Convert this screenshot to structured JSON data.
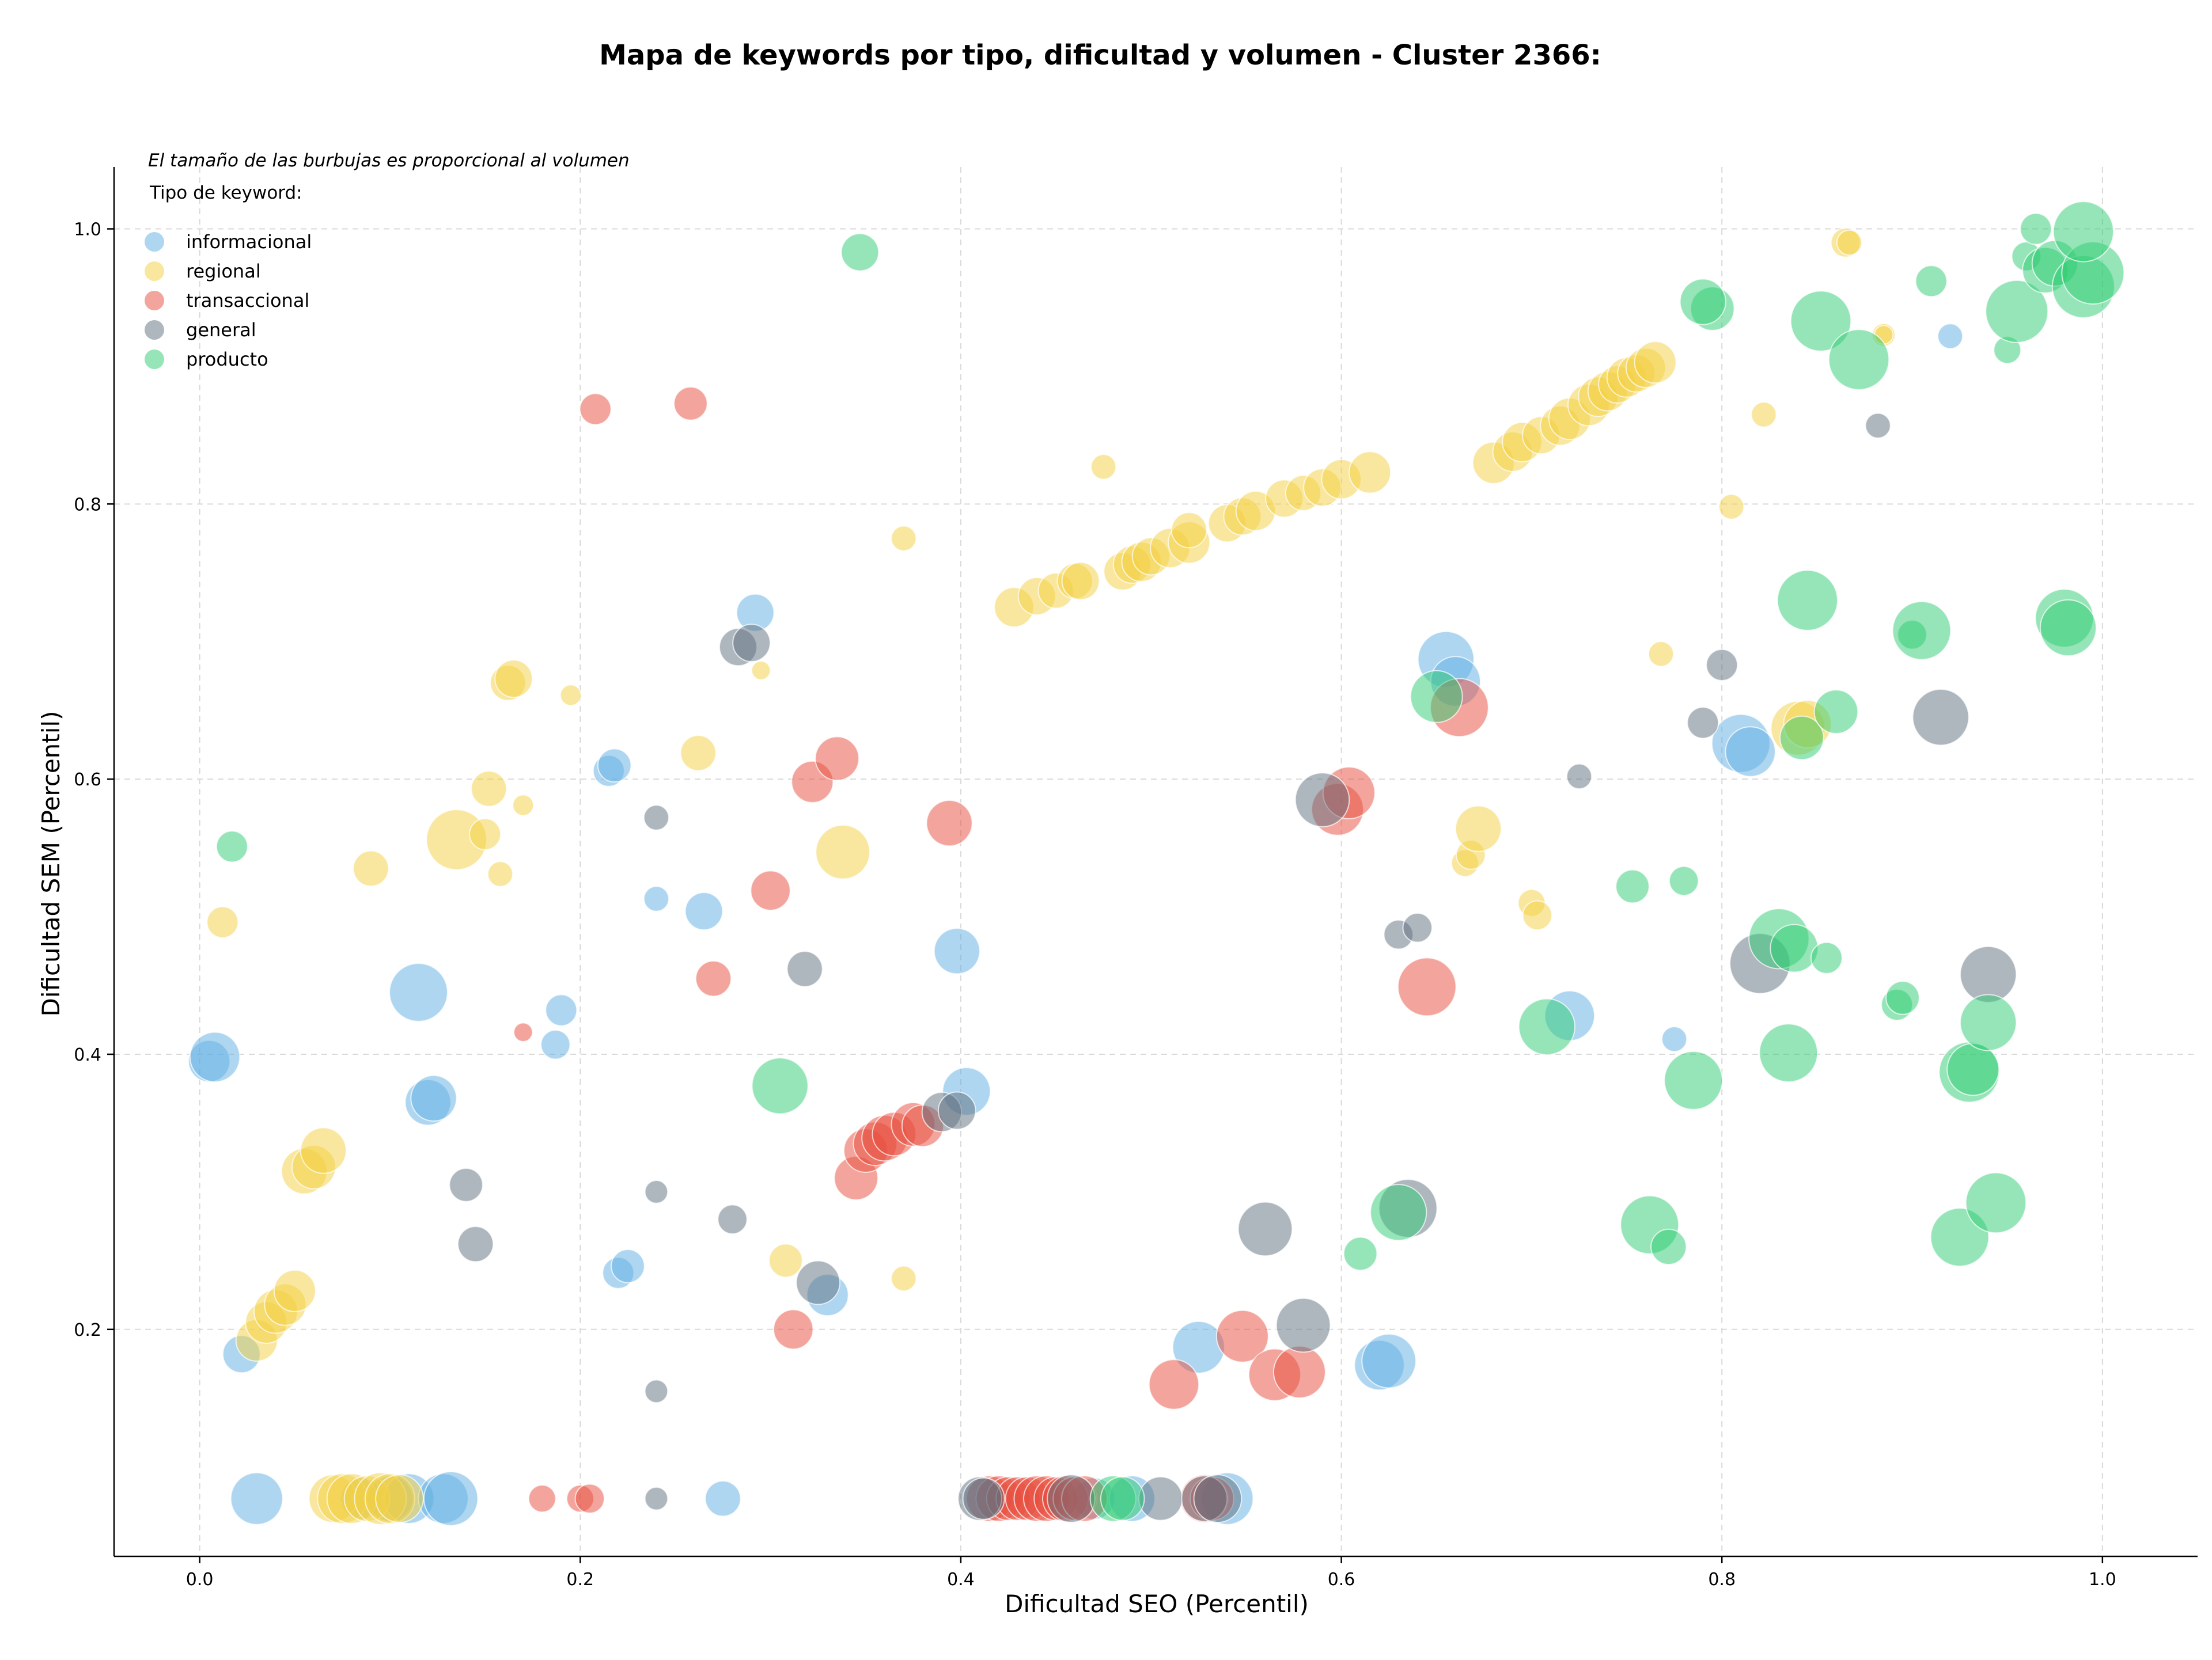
{
  "chart_data": {
    "type": "scatter",
    "title": "Mapa de keywords por tipo, dificultad y volumen - Cluster 2366:",
    "xlabel": "Dificultad SEO (Percentil)",
    "ylabel": "Dificultad SEM (Percentil)",
    "xlim": [
      -0.045,
      1.05
    ],
    "ylim": [
      0.035,
      1.045
    ],
    "x_ticks": [
      "0.0",
      "0.2",
      "0.4",
      "0.6",
      "0.8",
      "1.0"
    ],
    "y_ticks": [
      "0.2",
      "0.4",
      "0.6",
      "0.8",
      "1.0"
    ],
    "grid": true,
    "legend_position": "top-left",
    "annotation": "El tamaño de las burbujas es proporcional al volumen",
    "legend_title": "Tipo de keyword:",
    "series": [
      {
        "name": "informacional",
        "color": "#5dade2",
        "points": [
          [
            0.005,
            0.395,
            20
          ],
          [
            0.008,
            0.398,
            24
          ],
          [
            0.022,
            0.182,
            18
          ],
          [
            0.03,
            0.077,
            25
          ],
          [
            0.085,
            0.077,
            20
          ],
          [
            0.1,
            0.077,
            22
          ],
          [
            0.11,
            0.077,
            24
          ],
          [
            0.128,
            0.077,
            24
          ],
          [
            0.132,
            0.077,
            26
          ],
          [
            0.115,
            0.445,
            28
          ],
          [
            0.12,
            0.365,
            22
          ],
          [
            0.123,
            0.368,
            22
          ],
          [
            0.19,
            0.432,
            15
          ],
          [
            0.187,
            0.407,
            14
          ],
          [
            0.215,
            0.606,
            15
          ],
          [
            0.218,
            0.61,
            16
          ],
          [
            0.22,
            0.241,
            15
          ],
          [
            0.225,
            0.246,
            16
          ],
          [
            0.24,
            0.513,
            12
          ],
          [
            0.265,
            0.504,
            18
          ],
          [
            0.275,
            0.077,
            17
          ],
          [
            0.292,
            0.721,
            18
          ],
          [
            0.33,
            0.225,
            20
          ],
          [
            0.398,
            0.475,
            22
          ],
          [
            0.403,
            0.373,
            23
          ],
          [
            0.47,
            0.077,
            20
          ],
          [
            0.49,
            0.077,
            22
          ],
          [
            0.525,
            0.187,
            25
          ],
          [
            0.54,
            0.077,
            25
          ],
          [
            0.62,
            0.174,
            24
          ],
          [
            0.625,
            0.177,
            26
          ],
          [
            0.655,
            0.687,
            27
          ],
          [
            0.66,
            0.671,
            24
          ],
          [
            0.72,
            0.428,
            24
          ],
          [
            0.775,
            0.411,
            12
          ],
          [
            0.81,
            0.626,
            28
          ],
          [
            0.815,
            0.62,
            24
          ],
          [
            0.92,
            0.922,
            12
          ]
        ]
      },
      {
        "name": "regional",
        "color": "#f4d03f",
        "points": [
          [
            0.012,
            0.496,
            15
          ],
          [
            0.03,
            0.192,
            20
          ],
          [
            0.035,
            0.205,
            20
          ],
          [
            0.04,
            0.213,
            21
          ],
          [
            0.045,
            0.218,
            20
          ],
          [
            0.05,
            0.228,
            20
          ],
          [
            0.055,
            0.315,
            22
          ],
          [
            0.06,
            0.318,
            21
          ],
          [
            0.065,
            0.33,
            22
          ],
          [
            0.07,
            0.077,
            23
          ],
          [
            0.075,
            0.077,
            24
          ],
          [
            0.08,
            0.077,
            24
          ],
          [
            0.088,
            0.077,
            22
          ],
          [
            0.095,
            0.077,
            25
          ],
          [
            0.1,
            0.077,
            24
          ],
          [
            0.105,
            0.077,
            23
          ],
          [
            0.09,
            0.535,
            17
          ],
          [
            0.135,
            0.556,
            29
          ],
          [
            0.15,
            0.56,
            15
          ],
          [
            0.152,
            0.593,
            17
          ],
          [
            0.158,
            0.531,
            12
          ],
          [
            0.162,
            0.67,
            17
          ],
          [
            0.165,
            0.673,
            18
          ],
          [
            0.17,
            0.581,
            10
          ],
          [
            0.195,
            0.661,
            10
          ],
          [
            0.262,
            0.619,
            17
          ],
          [
            0.295,
            0.679,
            9
          ],
          [
            0.308,
            0.25,
            16
          ],
          [
            0.338,
            0.547,
            26
          ],
          [
            0.37,
            0.775,
            12
          ],
          [
            0.37,
            0.237,
            12
          ],
          [
            0.428,
            0.725,
            19
          ],
          [
            0.44,
            0.733,
            18
          ],
          [
            0.45,
            0.737,
            17
          ],
          [
            0.46,
            0.744,
            17
          ],
          [
            0.463,
            0.744,
            18
          ],
          [
            0.475,
            0.827,
            12
          ],
          [
            0.485,
            0.751,
            18
          ],
          [
            0.49,
            0.756,
            18
          ],
          [
            0.495,
            0.758,
            19
          ],
          [
            0.5,
            0.762,
            18
          ],
          [
            0.51,
            0.768,
            19
          ],
          [
            0.52,
            0.772,
            20
          ],
          [
            0.52,
            0.781,
            17
          ],
          [
            0.54,
            0.786,
            18
          ],
          [
            0.548,
            0.791,
            18
          ],
          [
            0.555,
            0.795,
            19
          ],
          [
            0.57,
            0.804,
            18
          ],
          [
            0.58,
            0.808,
            17
          ],
          [
            0.59,
            0.812,
            18
          ],
          [
            0.6,
            0.818,
            19
          ],
          [
            0.615,
            0.823,
            20
          ],
          [
            0.665,
            0.539,
            13
          ],
          [
            0.668,
            0.545,
            14
          ],
          [
            0.672,
            0.564,
            22
          ],
          [
            0.7,
            0.51,
            13
          ],
          [
            0.703,
            0.501,
            14
          ],
          [
            0.68,
            0.83,
            20
          ],
          [
            0.69,
            0.838,
            19
          ],
          [
            0.695,
            0.845,
            19
          ],
          [
            0.705,
            0.85,
            18
          ],
          [
            0.715,
            0.857,
            19
          ],
          [
            0.72,
            0.862,
            20
          ],
          [
            0.73,
            0.872,
            20
          ],
          [
            0.735,
            0.878,
            19
          ],
          [
            0.74,
            0.882,
            19
          ],
          [
            0.745,
            0.887,
            18
          ],
          [
            0.75,
            0.892,
            19
          ],
          [
            0.755,
            0.895,
            18
          ],
          [
            0.76,
            0.899,
            19
          ],
          [
            0.765,
            0.903,
            20
          ],
          [
            0.768,
            0.691,
            12
          ],
          [
            0.805,
            0.798,
            12
          ],
          [
            0.822,
            0.865,
            12
          ],
          [
            0.84,
            0.637,
            26
          ],
          [
            0.845,
            0.64,
            23
          ],
          [
            0.865,
            0.99,
            14
          ],
          [
            0.867,
            0.99,
            12
          ],
          [
            0.885,
            0.923,
            11
          ],
          [
            0.885,
            0.923,
            9
          ]
        ]
      },
      {
        "name": "transaccional",
        "color": "#e74c3c",
        "points": [
          [
            0.17,
            0.416,
            9
          ],
          [
            0.18,
            0.077,
            13
          ],
          [
            0.2,
            0.077,
            13
          ],
          [
            0.205,
            0.077,
            14
          ],
          [
            0.208,
            0.869,
            15
          ],
          [
            0.258,
            0.873,
            16
          ],
          [
            0.27,
            0.455,
            17
          ],
          [
            0.3,
            0.519,
            19
          ],
          [
            0.312,
            0.2,
            19
          ],
          [
            0.322,
            0.598,
            20
          ],
          [
            0.335,
            0.615,
            21
          ],
          [
            0.345,
            0.31,
            21
          ],
          [
            0.35,
            0.33,
            21
          ],
          [
            0.355,
            0.335,
            21
          ],
          [
            0.36,
            0.339,
            22
          ],
          [
            0.365,
            0.342,
            21
          ],
          [
            0.375,
            0.349,
            21
          ],
          [
            0.38,
            0.348,
            20
          ],
          [
            0.394,
            0.568,
            22
          ],
          [
            0.415,
            0.077,
            22
          ],
          [
            0.42,
            0.077,
            22
          ],
          [
            0.425,
            0.077,
            21
          ],
          [
            0.43,
            0.077,
            21
          ],
          [
            0.435,
            0.077,
            21
          ],
          [
            0.44,
            0.077,
            22
          ],
          [
            0.445,
            0.077,
            22
          ],
          [
            0.45,
            0.077,
            21
          ],
          [
            0.455,
            0.077,
            22
          ],
          [
            0.46,
            0.077,
            21
          ],
          [
            0.465,
            0.077,
            22
          ],
          [
            0.512,
            0.16,
            24
          ],
          [
            0.528,
            0.077,
            23
          ],
          [
            0.532,
            0.077,
            21
          ],
          [
            0.548,
            0.195,
            25
          ],
          [
            0.565,
            0.167,
            25
          ],
          [
            0.578,
            0.169,
            25
          ],
          [
            0.598,
            0.578,
            25
          ],
          [
            0.604,
            0.59,
            25
          ],
          [
            0.645,
            0.449,
            28
          ],
          [
            0.662,
            0.652,
            28
          ]
        ]
      },
      {
        "name": "general",
        "color": "#5d6d7e",
        "points": [
          [
            0.14,
            0.305,
            16
          ],
          [
            0.145,
            0.262,
            17
          ],
          [
            0.24,
            0.572,
            12
          ],
          [
            0.24,
            0.3,
            11
          ],
          [
            0.24,
            0.155,
            11
          ],
          [
            0.24,
            0.077,
            11
          ],
          [
            0.28,
            0.28,
            14
          ],
          [
            0.283,
            0.696,
            18
          ],
          [
            0.29,
            0.699,
            18
          ],
          [
            0.318,
            0.462,
            17
          ],
          [
            0.325,
            0.234,
            21
          ],
          [
            0.39,
            0.358,
            19
          ],
          [
            0.398,
            0.359,
            18
          ],
          [
            0.41,
            0.077,
            21
          ],
          [
            0.412,
            0.077,
            20
          ],
          [
            0.458,
            0.077,
            23
          ],
          [
            0.505,
            0.077,
            21
          ],
          [
            0.528,
            0.077,
            22
          ],
          [
            0.535,
            0.077,
            23
          ],
          [
            0.56,
            0.273,
            26
          ],
          [
            0.58,
            0.203,
            26
          ],
          [
            0.59,
            0.585,
            26
          ],
          [
            0.63,
            0.487,
            14
          ],
          [
            0.64,
            0.492,
            14
          ],
          [
            0.635,
            0.288,
            28
          ],
          [
            0.725,
            0.602,
            12
          ],
          [
            0.79,
            0.641,
            15
          ],
          [
            0.8,
            0.683,
            15
          ],
          [
            0.82,
            0.466,
            29
          ],
          [
            0.882,
            0.857,
            12
          ],
          [
            0.915,
            0.645,
            27
          ],
          [
            0.94,
            0.458,
            27
          ]
        ]
      },
      {
        "name": "producto",
        "color": "#2ecc71",
        "points": [
          [
            0.017,
            0.551,
            15
          ],
          [
            0.305,
            0.377,
            27
          ],
          [
            0.347,
            0.983,
            18
          ],
          [
            0.48,
            0.077,
            22
          ],
          [
            0.485,
            0.077,
            21
          ],
          [
            0.61,
            0.255,
            16
          ],
          [
            0.63,
            0.285,
            27
          ],
          [
            0.65,
            0.66,
            25
          ],
          [
            0.708,
            0.42,
            27
          ],
          [
            0.753,
            0.522,
            16
          ],
          [
            0.762,
            0.276,
            28
          ],
          [
            0.772,
            0.26,
            17
          ],
          [
            0.78,
            0.526,
            14
          ],
          [
            0.785,
            0.381,
            28
          ],
          [
            0.795,
            0.942,
            21
          ],
          [
            0.79,
            0.947,
            22
          ],
          [
            0.835,
            0.401,
            28
          ],
          [
            0.83,
            0.484,
            29
          ],
          [
            0.838,
            0.477,
            23
          ],
          [
            0.842,
            0.63,
            21
          ],
          [
            0.845,
            0.73,
            29
          ],
          [
            0.852,
            0.933,
            29
          ],
          [
            0.86,
            0.649,
            21
          ],
          [
            0.872,
            0.905,
            29
          ],
          [
            0.855,
            0.47,
            15
          ],
          [
            0.892,
            0.436,
            15
          ],
          [
            0.895,
            0.441,
            16
          ],
          [
            0.9,
            0.705,
            14
          ],
          [
            0.905,
            0.708,
            28
          ],
          [
            0.91,
            0.962,
            15
          ],
          [
            0.925,
            0.267,
            28
          ],
          [
            0.93,
            0.387,
            29
          ],
          [
            0.932,
            0.389,
            25
          ],
          [
            0.94,
            0.423,
            27
          ],
          [
            0.944,
            0.292,
            29
          ],
          [
            0.95,
            0.912,
            13
          ],
          [
            0.955,
            0.94,
            30
          ],
          [
            0.96,
            0.98,
            14
          ],
          [
            0.965,
            1.0,
            15
          ],
          [
            0.97,
            0.97,
            22
          ],
          [
            0.975,
            0.975,
            22
          ],
          [
            0.98,
            0.717,
            28
          ],
          [
            0.982,
            0.71,
            27
          ],
          [
            0.99,
            0.958,
            30
          ],
          [
            0.995,
            0.968,
            30
          ],
          [
            0.99,
            0.998,
            29
          ]
        ]
      }
    ]
  }
}
